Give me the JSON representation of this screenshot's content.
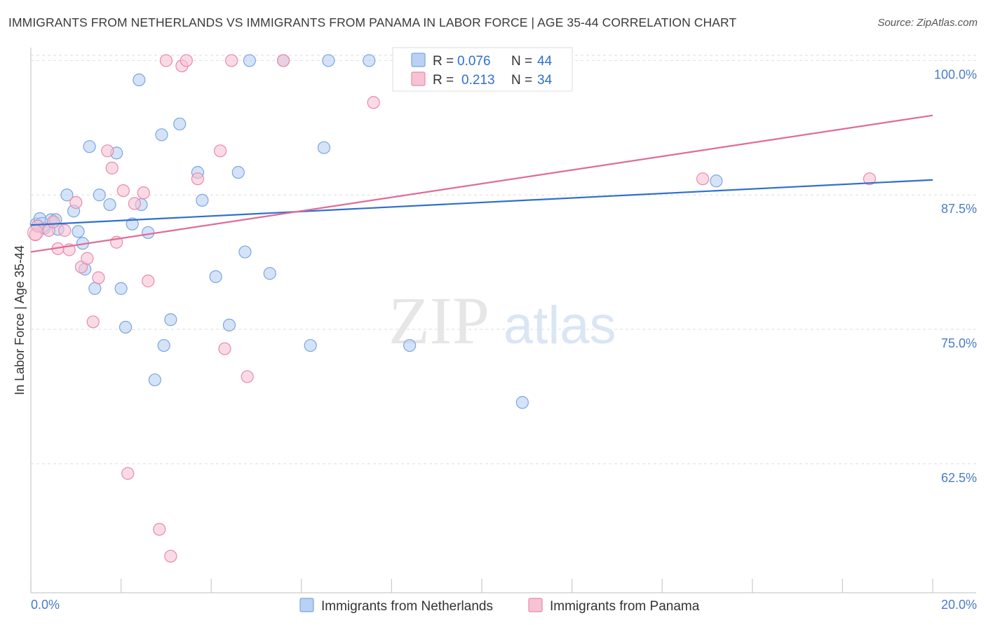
{
  "header": {
    "title": "IMMIGRANTS FROM NETHERLANDS VS IMMIGRANTS FROM PANAMA IN LABOR FORCE | AGE 35-44 CORRELATION CHART",
    "source": "Source: ZipAtlas.com"
  },
  "watermark": {
    "zip": "ZIP",
    "atlas": "atlas"
  },
  "colors": {
    "netherlands_fill": "#b9d1f3",
    "netherlands_stroke": "#7aa6e0",
    "netherlands_line": "#2f6fcf",
    "panama_fill": "#f7c3d4",
    "panama_stroke": "#e88aa8",
    "panama_line": "#e06b98",
    "tick_label": "#4a7cc7"
  },
  "legend": {
    "rows": [
      {
        "r_label": "R = ",
        "r_value": "0.076",
        "n_label": "N = ",
        "n_value": "44"
      },
      {
        "r_label": "R = ",
        "r_value": "0.213",
        "n_label": "N = ",
        "n_value": "34"
      }
    ]
  },
  "chart_data": {
    "type": "scatter",
    "title": "IMMIGRANTS FROM NETHERLANDS VS IMMIGRANTS FROM PANAMA IN LABOR FORCE | AGE 35-44 CORRELATION CHART",
    "xlabel": "",
    "ylabel": "In Labor Force | Age 35-44",
    "xlim": [
      0,
      20
    ],
    "ylim": [
      50.5,
      101.2
    ],
    "x_tick_labels": [
      "0.0%",
      "20.0%"
    ],
    "y_ticks": [
      62.5,
      75.0,
      87.5,
      100.0
    ],
    "y_tick_labels": [
      "62.5%",
      "75.0%",
      "87.5%",
      "100.0%"
    ],
    "grid": true,
    "legend_position": "top-center",
    "series": [
      {
        "name": "Immigrants from Netherlands",
        "r": 0.076,
        "n": 44,
        "trend": {
          "x": [
            0,
            20
          ],
          "y": [
            84.7,
            88.9
          ]
        },
        "points": [
          [
            0.12,
            84.8
          ],
          [
            0.2,
            85.3
          ],
          [
            0.3,
            84.4
          ],
          [
            0.45,
            85.2
          ],
          [
            0.55,
            85.2
          ],
          [
            0.6,
            84.3
          ],
          [
            0.8,
            87.5
          ],
          [
            0.95,
            86.0
          ],
          [
            1.05,
            84.1
          ],
          [
            1.15,
            83.0
          ],
          [
            1.2,
            80.6
          ],
          [
            1.3,
            92.0
          ],
          [
            1.42,
            78.8
          ],
          [
            1.52,
            87.5
          ],
          [
            1.75,
            86.6
          ],
          [
            1.9,
            91.4
          ],
          [
            2.0,
            78.8
          ],
          [
            2.1,
            75.2
          ],
          [
            2.25,
            84.8
          ],
          [
            2.4,
            98.2
          ],
          [
            2.45,
            86.6
          ],
          [
            2.6,
            84.0
          ],
          [
            2.75,
            70.3
          ],
          [
            2.9,
            93.1
          ],
          [
            2.95,
            73.5
          ],
          [
            3.1,
            75.9
          ],
          [
            3.3,
            94.1
          ],
          [
            3.7,
            89.6
          ],
          [
            3.8,
            87.0
          ],
          [
            4.1,
            79.9
          ],
          [
            4.4,
            75.4
          ],
          [
            4.6,
            89.6
          ],
          [
            4.75,
            82.2
          ],
          [
            4.85,
            100.0
          ],
          [
            5.3,
            80.2
          ],
          [
            5.6,
            100.0
          ],
          [
            6.2,
            73.5
          ],
          [
            6.5,
            91.9
          ],
          [
            6.6,
            100.0
          ],
          [
            7.5,
            100.0
          ],
          [
            8.4,
            73.5
          ],
          [
            9.0,
            100.0
          ],
          [
            10.9,
            68.2
          ],
          [
            15.2,
            88.8
          ]
        ]
      },
      {
        "name": "Immigrants from Panama",
        "r": 0.213,
        "n": 34,
        "trend": {
          "x": [
            0,
            20
          ],
          "y": [
            82.2,
            94.9
          ]
        },
        "points": [
          [
            0.1,
            83.8
          ],
          [
            0.15,
            84.6
          ],
          [
            0.4,
            84.2
          ],
          [
            0.5,
            85.0
          ],
          [
            0.6,
            82.5
          ],
          [
            0.75,
            84.2
          ],
          [
            0.85,
            82.4
          ],
          [
            1.0,
            86.8
          ],
          [
            1.12,
            80.8
          ],
          [
            1.25,
            81.6
          ],
          [
            1.38,
            75.7
          ],
          [
            1.5,
            79.8
          ],
          [
            1.7,
            91.6
          ],
          [
            1.8,
            90.0
          ],
          [
            1.9,
            83.1
          ],
          [
            2.05,
            87.9
          ],
          [
            2.15,
            61.6
          ],
          [
            2.3,
            86.7
          ],
          [
            2.5,
            87.7
          ],
          [
            2.6,
            79.5
          ],
          [
            2.85,
            56.4
          ],
          [
            3.0,
            100.0
          ],
          [
            3.1,
            53.9
          ],
          [
            3.35,
            99.5
          ],
          [
            3.45,
            100.0
          ],
          [
            3.7,
            89.0
          ],
          [
            4.2,
            91.6
          ],
          [
            4.3,
            73.2
          ],
          [
            4.45,
            100.0
          ],
          [
            4.8,
            70.6
          ],
          [
            5.6,
            100.0
          ],
          [
            7.6,
            96.1
          ],
          [
            14.9,
            89.0
          ],
          [
            18.6,
            89.0
          ]
        ]
      }
    ]
  },
  "bottom_legend": {
    "items": [
      {
        "label": "Immigrants from Netherlands"
      },
      {
        "label": "Immigrants from Panama"
      }
    ]
  }
}
